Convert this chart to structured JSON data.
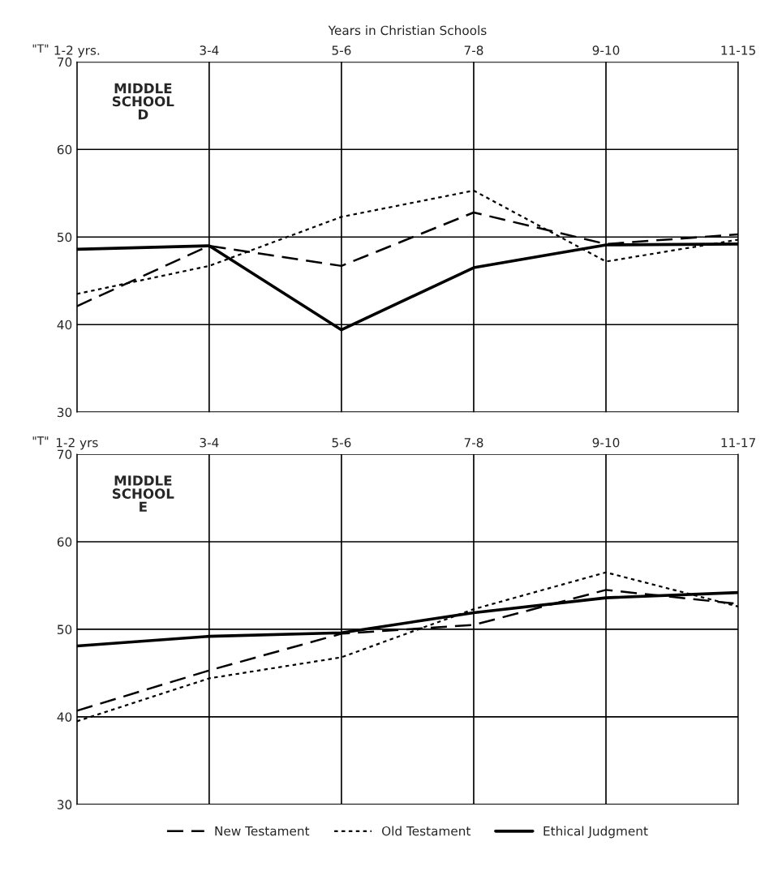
{
  "chart_data": [
    {
      "type": "line",
      "title": "Years in Christian Schools",
      "ylabel": "\"T\"",
      "categories": [
        "1-2 yrs.",
        "3-4",
        "5-6",
        "7-8",
        "9-10",
        "11-15"
      ],
      "ylim": [
        30,
        70
      ],
      "yticks": [
        30,
        40,
        50,
        60,
        70
      ],
      "grid": true,
      "marker": "none",
      "annotations": [
        "MIDDLE SCHOOL D"
      ],
      "series": [
        {
          "color": "#000000",
          "line_style": "dashed",
          "values": [
            42.1,
            49.0,
            46.7,
            52.8,
            49.2,
            50.3
          ]
        },
        {
          "color": "#000000",
          "line_style": "dotted",
          "values": [
            43.5,
            46.7,
            52.3,
            55.3,
            47.2,
            49.7
          ]
        },
        {
          "color": "#000000",
          "line_style": "solid",
          "values": [
            48.6,
            49.0,
            39.4,
            46.5,
            49.1,
            49.2
          ]
        }
      ]
    },
    {
      "type": "line",
      "ylabel": "\"T\"",
      "categories": [
        "1-2 yrs",
        "3-4",
        "5-6",
        "7-8",
        "9-10",
        "11-17"
      ],
      "ylim": [
        30,
        70
      ],
      "yticks": [
        30,
        40,
        50,
        60,
        70
      ],
      "grid": true,
      "marker": "none",
      "legend": "bottom",
      "annotations": [
        "MIDDLE SCHOOL E"
      ],
      "series": [
        {
          "name": "New Testament",
          "color": "#000000",
          "line_style": "dashed",
          "values": [
            40.7,
            45.3,
            49.5,
            50.5,
            54.5,
            52.9
          ]
        },
        {
          "name": "Old Testament",
          "color": "#000000",
          "line_style": "dotted",
          "values": [
            39.5,
            44.4,
            46.8,
            52.3,
            56.5,
            52.6
          ]
        },
        {
          "name": "Ethical Judgment",
          "color": "#000000",
          "line_style": "solid",
          "values": [
            48.1,
            49.2,
            49.6,
            51.9,
            53.6,
            54.2
          ]
        }
      ]
    }
  ]
}
